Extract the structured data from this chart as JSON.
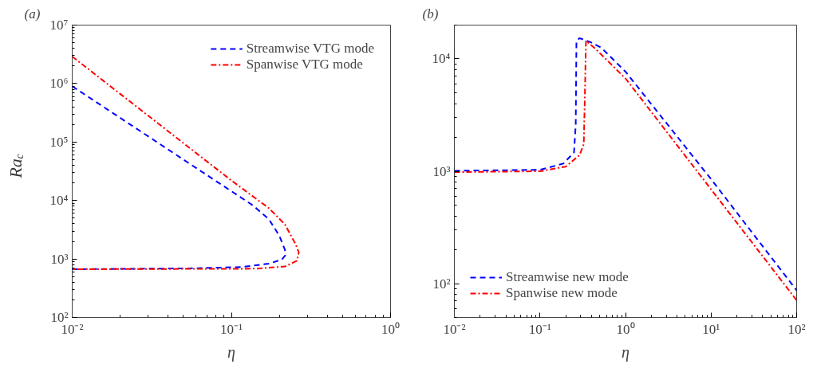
{
  "chart_data": [
    {
      "type": "line",
      "title": "(a)",
      "xlabel": "η",
      "ylabel": "Ra$_{c}$",
      "log": "xy",
      "xlim": [
        0.01,
        1
      ],
      "ylim": [
        100,
        10000000
      ],
      "xticks": [
        {
          "value": 0.01,
          "label": "10⁻²"
        },
        {
          "value": 0.1,
          "label": "10⁻¹"
        },
        {
          "value": 1,
          "label": "10⁰"
        }
      ],
      "yticks": [
        {
          "value": 100,
          "label": "10²"
        },
        {
          "value": 1000,
          "label": "10³"
        },
        {
          "value": 10000,
          "label": "10⁴"
        },
        {
          "value": 100000,
          "label": "10⁵"
        },
        {
          "value": 1000000,
          "label": "10⁶"
        },
        {
          "value": 10000000,
          "label": "10⁷"
        }
      ],
      "legend": "top right",
      "grid": false,
      "series": [
        {
          "name": "Streamwise VTG mode",
          "color": "#0000ff",
          "line_style": "dashed",
          "x": [
            0.01,
            0.136,
            0.172,
            0.2,
            0.217,
            0.218,
            0.208,
            0.172,
            0.117,
            0.054,
            0.01
          ],
          "values": [
            900000,
            8300,
            4800,
            2500,
            1440,
            1150,
            980,
            830,
            728,
            690,
            667
          ]
        },
        {
          "name": "Spanwise VTG mode",
          "color": "#ff0000",
          "line_style": "dashdot",
          "x": [
            0.01,
            0.1,
            0.172,
            0.217,
            0.253,
            0.265,
            0.258,
            0.217,
            0.142,
            0.01
          ],
          "values": [
            2900000,
            22000,
            7400,
            3900,
            1800,
            1300,
            930,
            743,
            681,
            667
          ]
        }
      ]
    },
    {
      "type": "line",
      "title": "(b)",
      "xlabel": "η",
      "log": "xy",
      "xlim": [
        0.01,
        100
      ],
      "ylim": [
        50,
        20000
      ],
      "xticks": [
        {
          "value": 0.01,
          "label": "10⁻²"
        },
        {
          "value": 0.1,
          "label": "10⁻¹"
        },
        {
          "value": 1,
          "label": "10⁰"
        },
        {
          "value": 10,
          "label": "10¹"
        },
        {
          "value": 100,
          "label": "10²"
        }
      ],
      "yticks": [
        {
          "value": 100,
          "label": "10²"
        },
        {
          "value": 1000,
          "label": "10³"
        },
        {
          "value": 10000,
          "label": "10⁴"
        }
      ],
      "legend": "bottom left",
      "grid": false,
      "series": [
        {
          "name": "Streamwise new mode",
          "color": "#0000ff",
          "line_style": "dashed",
          "x": [
            0.01,
            0.1,
            0.188,
            0.25,
            0.262,
            0.267,
            0.29,
            0.39,
            0.52,
            1,
            10,
            100
          ],
          "values": [
            1010,
            1030,
            1170,
            1470,
            2600,
            14500,
            15300,
            14100,
            12600,
            7700,
            850,
            87
          ]
        },
        {
          "name": "Spanwise new mode",
          "color": "#ff0000",
          "line_style": "dashdot",
          "x": [
            0.01,
            0.1,
            0.2,
            0.29,
            0.325,
            0.335,
            0.345,
            0.45,
            1,
            10,
            100
          ],
          "values": [
            983,
            1000,
            1100,
            1390,
            1740,
            4600,
            14500,
            12200,
            6700,
            690,
            71
          ]
        }
      ]
    }
  ]
}
